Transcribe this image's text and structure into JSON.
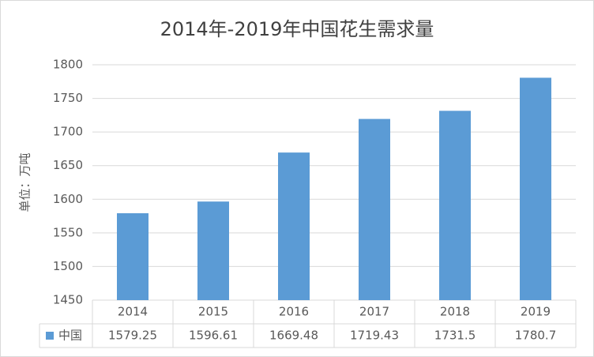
{
  "chart_data": {
    "type": "bar",
    "title": "2014年-2019年中国花生需求量",
    "y_label": "单位：万吨",
    "categories": [
      "2014",
      "2015",
      "2016",
      "2017",
      "2018",
      "2019"
    ],
    "series": [
      {
        "name": "中国",
        "color": "#5b9bd5",
        "values": [
          1579.25,
          1596.61,
          1669.48,
          1719.43,
          1731.5,
          1780.7
        ]
      }
    ],
    "ylim": [
      1450,
      1800
    ],
    "yticks": [
      1450,
      1500,
      1550,
      1600,
      1650,
      1700,
      1750,
      1800
    ],
    "grid": true,
    "data_table": true
  }
}
